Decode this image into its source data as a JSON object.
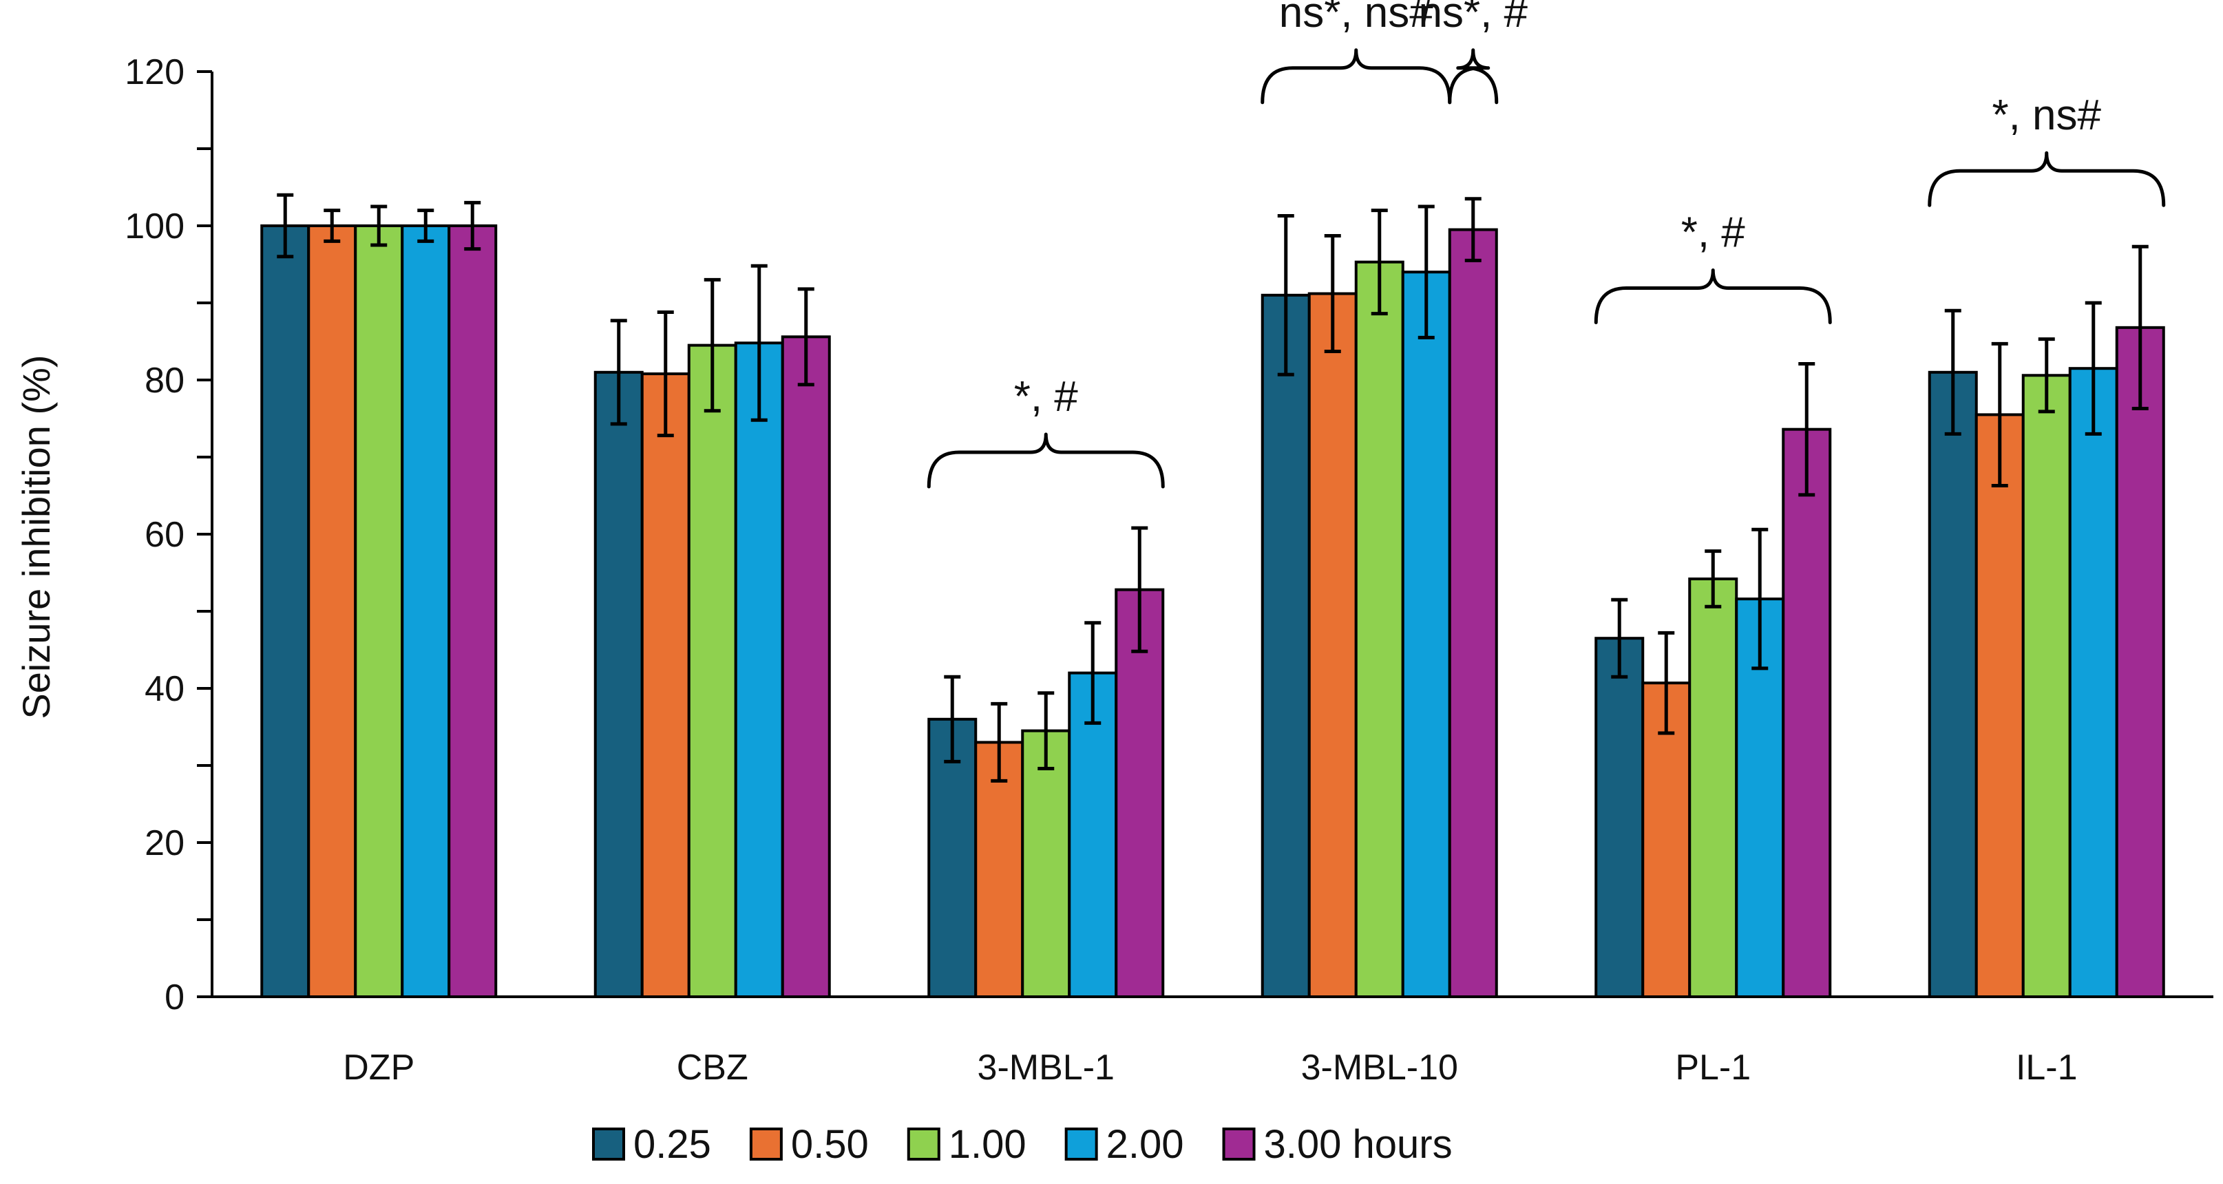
{
  "chart_data": {
    "type": "bar",
    "title": "",
    "xlabel": "",
    "ylabel": "Seizure inhibition (%)",
    "ylim": [
      0,
      120
    ],
    "yticks": [
      0,
      20,
      40,
      60,
      80,
      100,
      120
    ],
    "categories": [
      "DZP",
      "CBZ",
      "3-MBL-1",
      "3-MBL-10",
      "PL-1",
      "IL-1"
    ],
    "series": [
      {
        "name": "0.25",
        "color": "#17607f",
        "values": [
          100,
          81,
          36,
          91,
          46.5,
          81
        ],
        "errors": [
          4,
          6.7,
          5.5,
          10.3,
          5,
          8
        ]
      },
      {
        "name": "0.50",
        "color": "#e97132",
        "values": [
          100,
          80.8,
          33,
          91.2,
          40.7,
          75.5
        ],
        "errors": [
          2,
          8,
          5,
          7.5,
          6.5,
          9.2
        ]
      },
      {
        "name": "1.00",
        "color": "#8fd14f",
        "values": [
          100,
          84.5,
          34.5,
          95.3,
          54.2,
          80.6
        ],
        "errors": [
          2.5,
          8.5,
          4.9,
          6.7,
          3.6,
          4.7
        ]
      },
      {
        "name": "2.00",
        "color": "#0fa0da",
        "values": [
          100,
          84.8,
          42,
          94,
          51.6,
          81.5
        ],
        "errors": [
          2,
          10,
          6.5,
          8.5,
          9,
          8.5
        ]
      },
      {
        "name": "3.00 hours",
        "color": "#a02b93",
        "values": [
          100,
          85.6,
          52.8,
          99.5,
          73.6,
          86.8
        ],
        "errors": [
          3,
          6.2,
          8,
          4,
          8.5,
          10.5
        ]
      }
    ],
    "legend_position": "bottom",
    "annotations": [
      {
        "text": "*, #",
        "group": "3-MBL-1",
        "span": "all"
      },
      {
        "text": "ns*, ns#",
        "group": "3-MBL-10",
        "span": "first4"
      },
      {
        "text": "ns*, #",
        "group": "3-MBL-10",
        "span": "last1"
      },
      {
        "text": "*, #",
        "group": "PL-1",
        "span": "all"
      },
      {
        "text": "*, ns#",
        "group": "IL-1",
        "span": "all"
      }
    ]
  }
}
